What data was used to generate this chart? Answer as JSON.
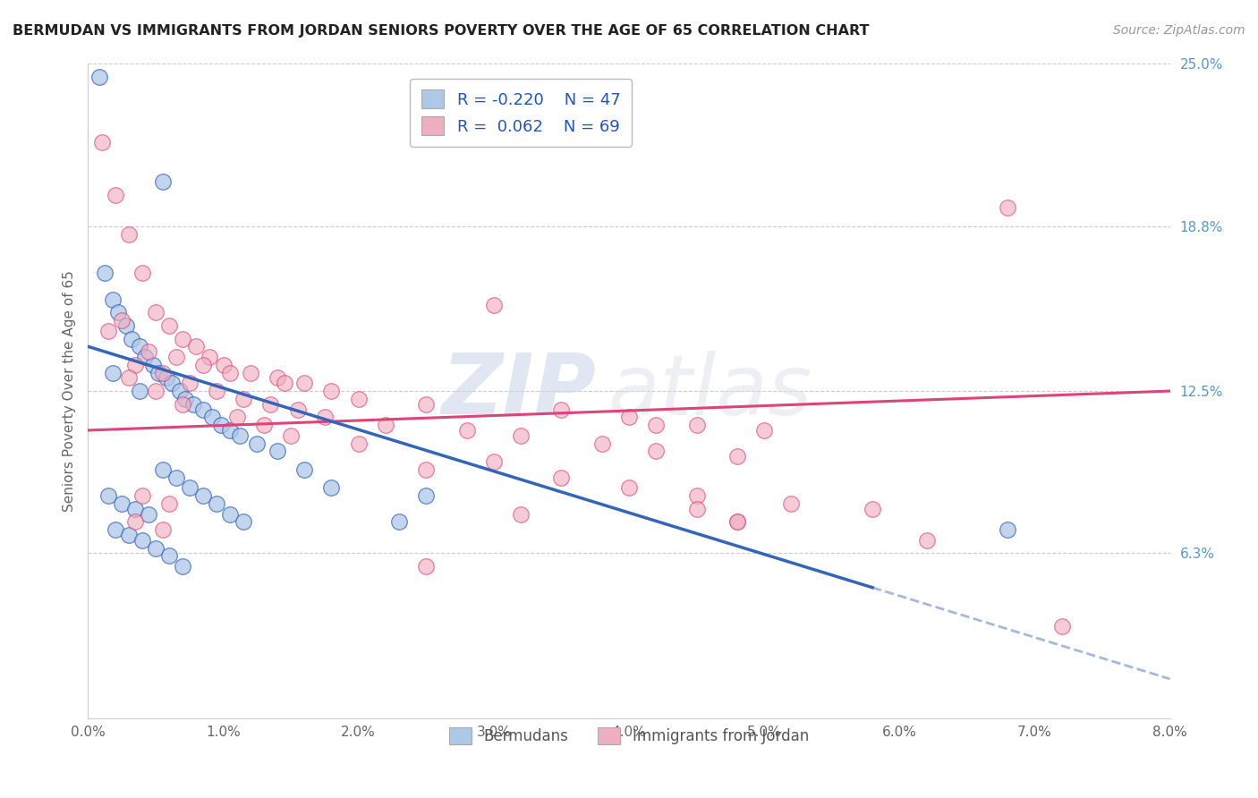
{
  "title": "BERMUDAN VS IMMIGRANTS FROM JORDAN SENIORS POVERTY OVER THE AGE OF 65 CORRELATION CHART",
  "source": "Source: ZipAtlas.com",
  "ylabel": "Seniors Poverty Over the Age of 65",
  "xlim": [
    0.0,
    8.0
  ],
  "ylim": [
    0.0,
    25.0
  ],
  "xticks": [
    0.0,
    1.0,
    2.0,
    3.0,
    4.0,
    5.0,
    6.0,
    7.0,
    8.0
  ],
  "xtick_labels": [
    "0.0%",
    "1.0%",
    "2.0%",
    "3.0%",
    "4.0%",
    "5.0%",
    "6.0%",
    "7.0%",
    "8.0%"
  ],
  "ytick_right_labels": [
    "6.3%",
    "12.5%",
    "18.8%",
    "25.0%"
  ],
  "ytick_right_values": [
    6.3,
    12.5,
    18.8,
    25.0
  ],
  "blue_R": -0.22,
  "blue_N": 47,
  "pink_R": 0.062,
  "pink_N": 69,
  "blue_color": "#aec8e8",
  "pink_color": "#f0afc0",
  "blue_line_color": "#3366bb",
  "pink_line_color": "#dd4477",
  "watermark_zip": "ZIP",
  "watermark_atlas": "atlas",
  "legend_label_blue": "Bermudans",
  "legend_label_pink": "Immigrants from Jordan",
  "blue_line_x0": 0.0,
  "blue_line_y0": 14.2,
  "blue_line_x1": 8.0,
  "blue_line_y1": 1.5,
  "blue_solid_end": 5.8,
  "pink_line_x0": 0.0,
  "pink_line_y0": 11.0,
  "pink_line_x1": 8.0,
  "pink_line_y1": 12.5,
  "blue_scatter_x": [
    0.08,
    0.55,
    0.12,
    0.18,
    0.22,
    0.28,
    0.32,
    0.38,
    0.42,
    0.48,
    0.52,
    0.58,
    0.62,
    0.68,
    0.72,
    0.78,
    0.85,
    0.92,
    0.98,
    1.05,
    1.12,
    1.25,
    1.4,
    1.6,
    1.8,
    0.15,
    0.25,
    0.35,
    0.45,
    0.55,
    0.65,
    0.75,
    0.85,
    0.95,
    1.05,
    1.15,
    0.2,
    0.3,
    0.4,
    0.5,
    0.6,
    0.7,
    2.3,
    2.5,
    6.8,
    0.18,
    0.38
  ],
  "blue_scatter_y": [
    24.5,
    20.5,
    17.0,
    16.0,
    15.5,
    15.0,
    14.5,
    14.2,
    13.8,
    13.5,
    13.2,
    13.0,
    12.8,
    12.5,
    12.2,
    12.0,
    11.8,
    11.5,
    11.2,
    11.0,
    10.8,
    10.5,
    10.2,
    9.5,
    8.8,
    8.5,
    8.2,
    8.0,
    7.8,
    9.5,
    9.2,
    8.8,
    8.5,
    8.2,
    7.8,
    7.5,
    7.2,
    7.0,
    6.8,
    6.5,
    6.2,
    5.8,
    7.5,
    8.5,
    7.2,
    13.2,
    12.5
  ],
  "pink_scatter_x": [
    0.1,
    0.2,
    0.3,
    0.4,
    0.5,
    0.6,
    0.7,
    0.8,
    0.9,
    1.0,
    1.2,
    1.4,
    1.6,
    1.8,
    2.0,
    2.5,
    3.0,
    3.5,
    4.0,
    4.5,
    5.0,
    0.35,
    0.55,
    0.75,
    0.95,
    1.15,
    1.35,
    1.55,
    1.75,
    2.2,
    2.8,
    3.2,
    3.8,
    4.2,
    4.8,
    0.45,
    0.65,
    0.85,
    1.05,
    1.45,
    0.25,
    0.15,
    0.3,
    0.5,
    0.7,
    1.1,
    1.3,
    1.5,
    2.0,
    2.5,
    3.0,
    3.5,
    4.0,
    4.5,
    5.2,
    5.8,
    0.4,
    0.6,
    4.5,
    0.35,
    0.55,
    2.5,
    3.2,
    4.8,
    4.8,
    6.2,
    4.2,
    6.8,
    7.2
  ],
  "pink_scatter_y": [
    22.0,
    20.0,
    18.5,
    17.0,
    15.5,
    15.0,
    14.5,
    14.2,
    13.8,
    13.5,
    13.2,
    13.0,
    12.8,
    12.5,
    12.2,
    12.0,
    15.8,
    11.8,
    11.5,
    11.2,
    11.0,
    13.5,
    13.2,
    12.8,
    12.5,
    12.2,
    12.0,
    11.8,
    11.5,
    11.2,
    11.0,
    10.8,
    10.5,
    10.2,
    10.0,
    14.0,
    13.8,
    13.5,
    13.2,
    12.8,
    15.2,
    14.8,
    13.0,
    12.5,
    12.0,
    11.5,
    11.2,
    10.8,
    10.5,
    9.5,
    9.8,
    9.2,
    8.8,
    8.5,
    8.2,
    8.0,
    8.5,
    8.2,
    8.0,
    7.5,
    7.2,
    5.8,
    7.8,
    7.5,
    7.5,
    6.8,
    11.2,
    19.5,
    3.5
  ]
}
